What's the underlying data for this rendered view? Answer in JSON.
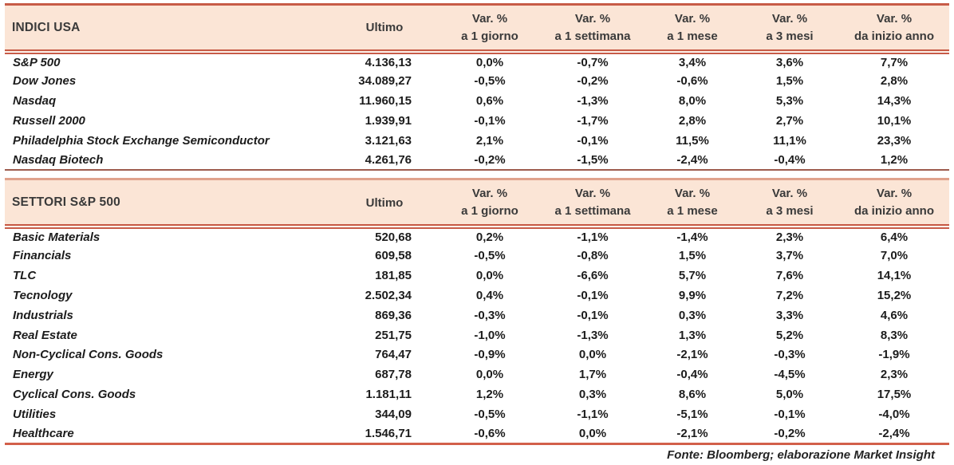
{
  "colors": {
    "header_bg": "#FBE5D6",
    "line_red": "#C75B47",
    "divider_dark": "#9D5B4D",
    "divider_light": "#E0A28C",
    "bottom_red": "#D2604A"
  },
  "columns": {
    "ultimo": "Ultimo",
    "var_label": "Var. %",
    "periods": [
      "a 1 giorno",
      "a 1 settimana",
      "a 1 mese",
      "a 3 mesi",
      "da inizio anno"
    ]
  },
  "sections": [
    {
      "title": "INDICI USA",
      "rows": [
        {
          "name": "S&P 500",
          "ultimo": "4.136,13",
          "vars": [
            "0,0%",
            "-0,7%",
            "3,4%",
            "3,6%",
            "7,7%"
          ]
        },
        {
          "name": "Dow Jones",
          "ultimo": "34.089,27",
          "vars": [
            "-0,5%",
            "-0,2%",
            "-0,6%",
            "1,5%",
            "2,8%"
          ]
        },
        {
          "name": "Nasdaq",
          "ultimo": "11.960,15",
          "vars": [
            "0,6%",
            "-1,3%",
            "8,0%",
            "5,3%",
            "14,3%"
          ]
        },
        {
          "name": "Russell 2000",
          "ultimo": "1.939,91",
          "vars": [
            "-0,1%",
            "-1,7%",
            "2,8%",
            "2,7%",
            "10,1%"
          ]
        },
        {
          "name": "Philadelphia Stock Exchange Semiconductor",
          "ultimo": "3.121,63",
          "vars": [
            "2,1%",
            "-0,1%",
            "11,5%",
            "11,1%",
            "23,3%"
          ]
        },
        {
          "name": "Nasdaq Biotech",
          "ultimo": "4.261,76",
          "vars": [
            "-0,2%",
            "-1,5%",
            "-2,4%",
            "-0,4%",
            "1,2%"
          ]
        }
      ]
    },
    {
      "title": "SETTORI S&P 500",
      "rows": [
        {
          "name": "Basic Materials",
          "ultimo": "520,68",
          "vars": [
            "0,2%",
            "-1,1%",
            "-1,4%",
            "2,3%",
            "6,4%"
          ]
        },
        {
          "name": "Financials",
          "ultimo": "609,58",
          "vars": [
            "-0,5%",
            "-0,8%",
            "1,5%",
            "3,7%",
            "7,0%"
          ]
        },
        {
          "name": "TLC",
          "ultimo": "181,85",
          "vars": [
            "0,0%",
            "-6,6%",
            "5,7%",
            "7,6%",
            "14,1%"
          ]
        },
        {
          "name": "Tecnology",
          "ultimo": "2.502,34",
          "vars": [
            "0,4%",
            "-0,1%",
            "9,9%",
            "7,2%",
            "15,2%"
          ]
        },
        {
          "name": "Industrials",
          "ultimo": "869,36",
          "vars": [
            "-0,3%",
            "-0,1%",
            "0,3%",
            "3,3%",
            "4,6%"
          ]
        },
        {
          "name": "Real Estate",
          "ultimo": "251,75",
          "vars": [
            "-1,0%",
            "-1,3%",
            "1,3%",
            "5,2%",
            "8,3%"
          ]
        },
        {
          "name": "Non-Cyclical Cons. Goods",
          "ultimo": "764,47",
          "vars": [
            "-0,9%",
            "0,0%",
            "-2,1%",
            "-0,3%",
            "-1,9%"
          ]
        },
        {
          "name": "Energy",
          "ultimo": "687,78",
          "vars": [
            "0,0%",
            "1,7%",
            "-0,4%",
            "-4,5%",
            "2,3%"
          ]
        },
        {
          "name": "Cyclical Cons. Goods",
          "ultimo": "1.181,11",
          "vars": [
            "1,2%",
            "0,3%",
            "8,6%",
            "5,0%",
            "17,5%"
          ]
        },
        {
          "name": "Utilities",
          "ultimo": "344,09",
          "vars": [
            "-0,5%",
            "-1,1%",
            "-5,1%",
            "-0,1%",
            "-4,0%"
          ]
        },
        {
          "name": "Healthcare",
          "ultimo": "1.546,71",
          "vars": [
            "-0,6%",
            "0,0%",
            "-2,1%",
            "-0,2%",
            "-2,4%"
          ]
        }
      ]
    }
  ],
  "footer": {
    "source_label": "Fonte: Bloomberg; elaborazione Market Insight"
  }
}
